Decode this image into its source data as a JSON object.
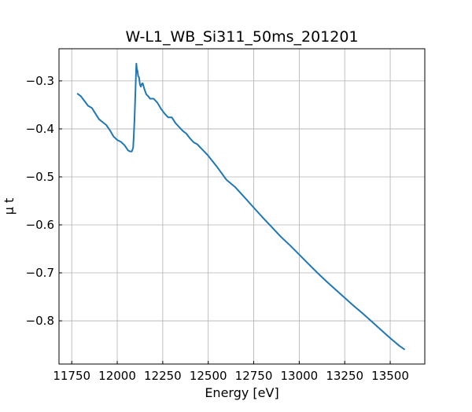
{
  "chart_data": {
    "type": "line",
    "title": "W-L1_WB_Si311_50ms_201201",
    "xlabel": "Energy [eV]",
    "ylabel": "μ t",
    "xlim": [
      11680,
      13690
    ],
    "ylim": [
      -0.89,
      -0.233
    ],
    "xticks": [
      11750,
      12000,
      12250,
      12500,
      12750,
      13000,
      13250,
      13500
    ],
    "xtick_labels": [
      "11750",
      "12000",
      "12250",
      "12500",
      "12750",
      "13000",
      "13250",
      "13500"
    ],
    "yticks": [
      -0.3,
      -0.4,
      -0.5,
      -0.6,
      -0.7,
      -0.8
    ],
    "ytick_labels": [
      "−0.3",
      "−0.4",
      "−0.5",
      "−0.6",
      "−0.7",
      "−0.8"
    ],
    "grid": true,
    "line_color": "#1f77b4",
    "series": [
      {
        "x": [
          11780,
          11800,
          11820,
          11840,
          11860,
          11880,
          11900,
          11920,
          11940,
          11960,
          11980,
          12000,
          12020,
          12040,
          12060,
          12070,
          12080,
          12087,
          12090,
          12095,
          12100,
          12105,
          12108,
          12112,
          12115,
          12120,
          12125,
          12130,
          12135,
          12140,
          12150,
          12160,
          12170,
          12180,
          12200,
          12220,
          12240,
          12260,
          12280,
          12300,
          12320,
          12340,
          12360,
          12380,
          12400,
          12420,
          12440,
          12460,
          12480,
          12500,
          12550,
          12600,
          12650,
          12700,
          12750,
          12800,
          12850,
          12900,
          12950,
          13000,
          13050,
          13100,
          13150,
          13200,
          13250,
          13300,
          13350,
          13400,
          13450,
          13500,
          13550,
          13580
        ],
        "y": [
          -0.326,
          -0.332,
          -0.342,
          -0.352,
          -0.356,
          -0.368,
          -0.38,
          -0.386,
          -0.392,
          -0.403,
          -0.416,
          -0.423,
          -0.427,
          -0.434,
          -0.445,
          -0.447,
          -0.447,
          -0.44,
          -0.42,
          -0.38,
          -0.32,
          -0.264,
          -0.275,
          -0.28,
          -0.29,
          -0.293,
          -0.308,
          -0.312,
          -0.306,
          -0.305,
          -0.318,
          -0.328,
          -0.332,
          -0.337,
          -0.337,
          -0.345,
          -0.358,
          -0.368,
          -0.376,
          -0.376,
          -0.388,
          -0.396,
          -0.404,
          -0.41,
          -0.42,
          -0.428,
          -0.432,
          -0.44,
          -0.448,
          -0.456,
          -0.48,
          -0.506,
          -0.522,
          -0.543,
          -0.564,
          -0.585,
          -0.605,
          -0.625,
          -0.643,
          -0.662,
          -0.681,
          -0.7,
          -0.718,
          -0.735,
          -0.752,
          -0.769,
          -0.785,
          -0.802,
          -0.819,
          -0.836,
          -0.852,
          -0.86
        ]
      }
    ]
  }
}
